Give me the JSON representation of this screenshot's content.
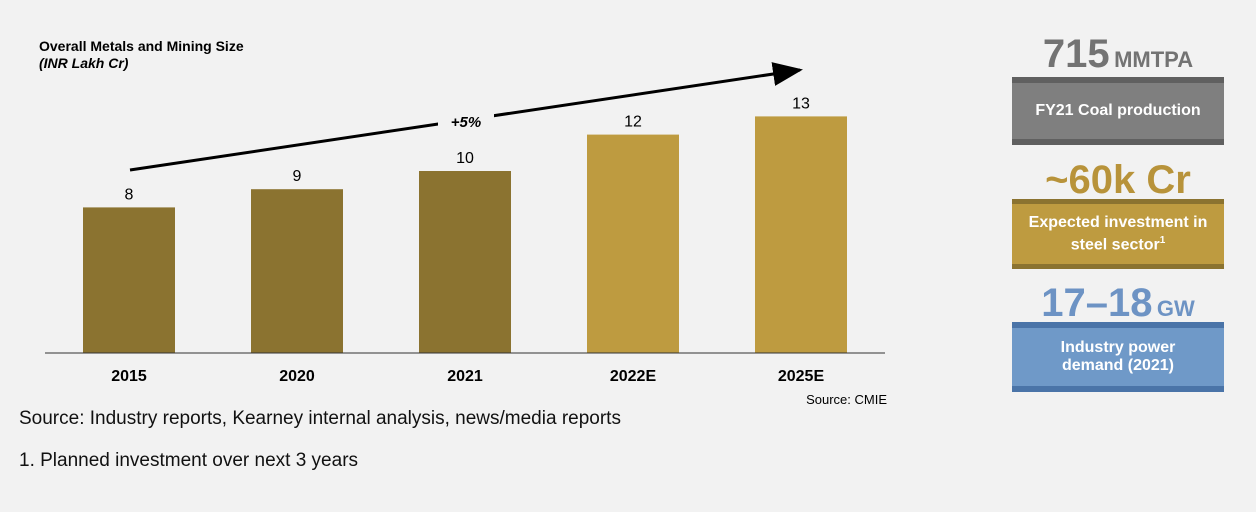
{
  "chart_data": {
    "type": "bar",
    "title": "Overall Metals and Mining Size",
    "subtitle": "(INR Lakh Cr)",
    "categories": [
      "2015",
      "2020",
      "2021",
      "2022E",
      "2025E"
    ],
    "values": [
      8,
      9,
      10,
      12,
      13
    ],
    "colors": [
      "#8b7330",
      "#8b7330",
      "#8b7330",
      "#be9b40",
      "#be9b40"
    ],
    "annotation": "+5%",
    "source": "Source: CMIE",
    "grid": false
  },
  "footer": {
    "source": "Source: Industry reports, Kearney internal analysis, news/media reports",
    "note": "1. Planned investment over next 3 years"
  },
  "stats": [
    {
      "value": "715",
      "unit": "MMTPA",
      "label": "FY21 Coal production",
      "color": "#737373",
      "box": "#7f7f7f",
      "edge": "#606060"
    },
    {
      "value": "~60k Cr",
      "unit": "",
      "label": "Expected investment in steel sector",
      "sup": "1",
      "color": "#b8933a",
      "box": "#be9b40",
      "edge": "#8b7330"
    },
    {
      "value": "17–18",
      "unit": "GW",
      "label": "Industry power demand (2021)",
      "color": "#6d93c4",
      "box": "#6f99c8",
      "edge": "#4a74a8"
    }
  ]
}
